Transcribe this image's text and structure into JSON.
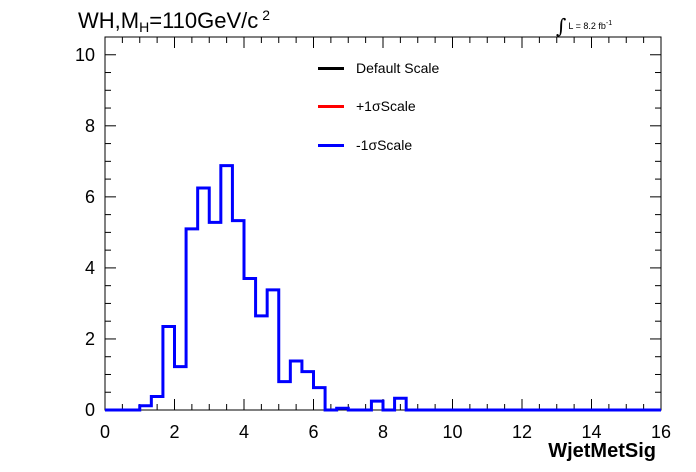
{
  "title": {
    "prefix": "WH,M",
    "sub": "H",
    "mid": "=110GeV/c",
    "sup": "2"
  },
  "lumi": {
    "text": "L = 8.2 fb",
    "sup": "-1"
  },
  "legend": [
    {
      "label": "Default Scale",
      "color": "#000000"
    },
    {
      "label": "+1σScale",
      "color": "#ff0000"
    },
    {
      "label": "-1σScale",
      "color": "#0000ff"
    }
  ],
  "chart_data": {
    "type": "step-histogram",
    "xlabel": "WjetMetSig",
    "ylabel": "",
    "xlim": [
      0,
      16
    ],
    "ylim": [
      0,
      10.5
    ],
    "xticks": [
      0,
      2,
      4,
      6,
      8,
      10,
      12,
      14,
      16
    ],
    "yticks": [
      0,
      2,
      4,
      6,
      8,
      10
    ],
    "bin_edges": [
      0,
      1,
      1.3333,
      1.6667,
      2,
      2.3333,
      2.6667,
      3,
      3.3333,
      3.6667,
      4,
      4.3333,
      4.6667,
      5,
      5.3333,
      5.6667,
      6,
      6.3333,
      6.6667,
      7,
      7.3333,
      7.6667,
      8,
      8.3333,
      8.6667,
      16
    ],
    "series": [
      {
        "name": "-1σScale",
        "color": "#0000ff",
        "values": [
          0,
          0.12,
          0.38,
          2.35,
          1.22,
          5.1,
          6.25,
          5.28,
          6.88,
          5.33,
          3.7,
          2.65,
          3.38,
          0.8,
          1.38,
          1.08,
          0.63,
          0.0,
          0.05,
          0.0,
          0.0,
          0.25,
          0.0,
          0.33,
          0.0
        ]
      }
    ]
  }
}
